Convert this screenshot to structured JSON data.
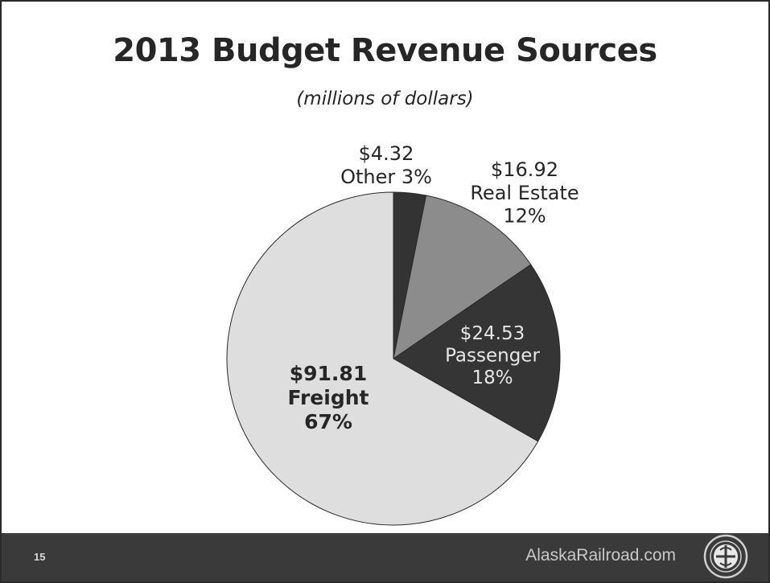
{
  "slide": {
    "title": "2013 Budget Revenue Sources",
    "subtitle": "(millions of dollars)"
  },
  "chart_data": {
    "type": "pie",
    "title": "2013 Budget Revenue Sources",
    "subtitle": "(millions of dollars)",
    "slices": [
      {
        "name": "Other",
        "value": 4.32,
        "value_label": "$4.32",
        "percent_label": "3%",
        "color": "#333333"
      },
      {
        "name": "Real Estate",
        "value": 16.92,
        "value_label": "$16.92",
        "percent_label": "12%",
        "color": "#8c8c8c"
      },
      {
        "name": "Passenger",
        "value": 24.53,
        "value_label": "$24.53",
        "percent_label": "18%",
        "color": "#353535"
      },
      {
        "name": "Freight",
        "value": 91.81,
        "value_label": "$91.81",
        "percent_label": "67%",
        "color": "#dedede"
      }
    ],
    "start_angle": "12 o'clock",
    "direction": "clockwise"
  },
  "footer": {
    "page_number": "15",
    "website": "AlaskaRailroad.com",
    "background_color": "#3a3a3a"
  },
  "logo": {
    "icon": "alaska-railroad-seal-icon"
  }
}
